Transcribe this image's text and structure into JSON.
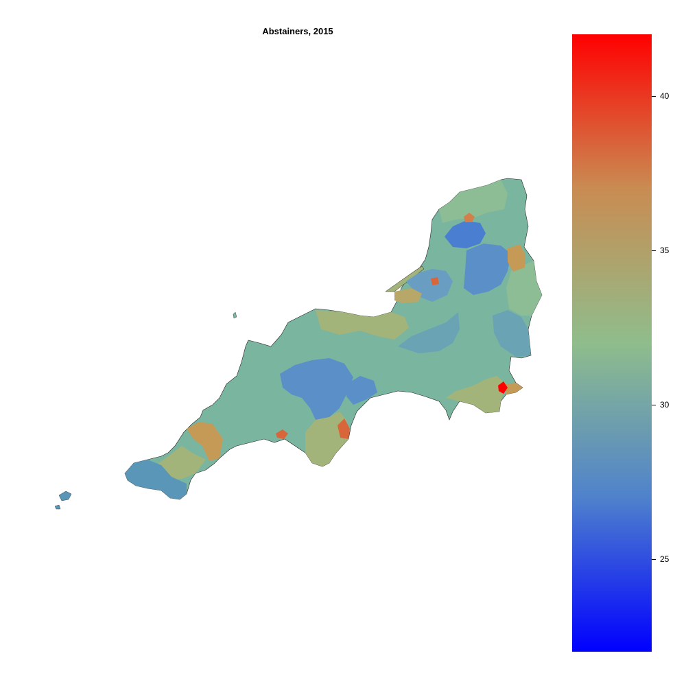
{
  "title": "Abstainers, 2015",
  "legend": {
    "min_value": 22,
    "max_value": 42,
    "color_low": "#0000ff",
    "color_mid": "#8fbd8c",
    "color_high": "#ff0000",
    "ticks": [
      {
        "value": 40,
        "label": "40"
      },
      {
        "value": 35,
        "label": "35"
      },
      {
        "value": 30,
        "label": "30"
      },
      {
        "value": 25,
        "label": "25"
      }
    ]
  },
  "region_colors": {
    "base_teal": "#7ab5a0",
    "blue": "#5a8fc8",
    "deep_blue": "#4a7ed0",
    "sage": "#a3b47a",
    "olive": "#b7a86a",
    "orange": "#d9663a",
    "red": "#ff0000",
    "tan": "#c59a56",
    "light_green": "#8dbd94"
  }
}
